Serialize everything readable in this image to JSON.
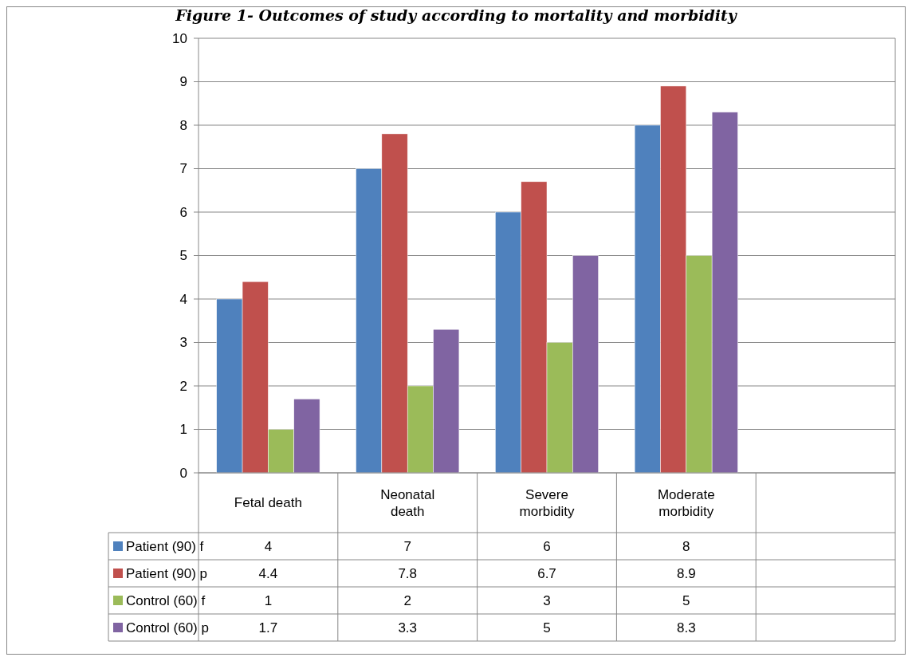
{
  "chart_data": {
    "type": "bar",
    "title": "Figure 1- Outcomes of study according to mortality and morbidity",
    "categories": [
      "Fetal death",
      "Neonatal death",
      "Severe morbidity",
      "Moderate morbidity",
      null
    ],
    "series": [
      {
        "name": "Patient (90) f",
        "color": "#4f81bd",
        "values": [
          4,
          7,
          6,
          8,
          null
        ]
      },
      {
        "name": "Patient (90) p",
        "color": "#c0504d",
        "values": [
          4.4,
          7.8,
          6.7,
          8.9,
          null
        ]
      },
      {
        "name": "Control (60) f",
        "color": "#9bbb59",
        "values": [
          1,
          2,
          3,
          5,
          null
        ]
      },
      {
        "name": "Control (60) p",
        "color": "#8064a2",
        "values": [
          1.7,
          3.3,
          5,
          8.3,
          null
        ]
      }
    ],
    "ylim": [
      0,
      10
    ],
    "yticks": [
      0,
      1,
      2,
      3,
      4,
      5,
      6,
      7,
      8,
      9,
      10
    ],
    "grid": "y",
    "data_labels": true,
    "legend": "bottom left"
  }
}
